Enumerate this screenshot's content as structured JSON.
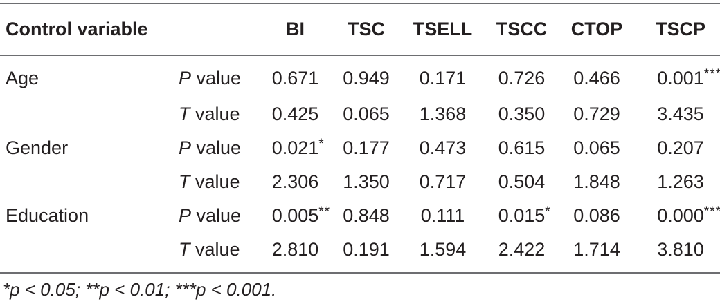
{
  "header": {
    "control_variable": "Control variable",
    "blank": "",
    "columns": [
      "BI",
      "TSC",
      "TSELL",
      "TSCC",
      "CTOP",
      "TSCP"
    ]
  },
  "rows": [
    {
      "variable": "Age",
      "p": {
        "letter": "P",
        "word": " value",
        "values": [
          "0.671",
          "0.949",
          "0.171",
          "0.726",
          "0.466",
          "0.001"
        ],
        "stars": [
          "",
          "",
          "",
          "",
          "",
          "***"
        ]
      },
      "t": {
        "letter": "T",
        "word": " value",
        "values": [
          "0.425",
          "0.065",
          "1.368",
          "0.350",
          "0.729",
          "3.435"
        ]
      }
    },
    {
      "variable": "Gender",
      "p": {
        "letter": "P",
        "word": " value",
        "values": [
          "0.021",
          "0.177",
          "0.473",
          "0.615",
          "0.065",
          "0.207"
        ],
        "stars": [
          "*",
          "",
          "",
          "",
          "",
          ""
        ]
      },
      "t": {
        "letter": "T",
        "word": " value",
        "values": [
          "2.306",
          "1.350",
          "0.717",
          "0.504",
          "1.848",
          "1.263"
        ]
      }
    },
    {
      "variable": "Education",
      "p": {
        "letter": "P",
        "word": " value",
        "values": [
          "0.005",
          "0.848",
          "0.111",
          "0.015",
          "0.086",
          "0.000"
        ],
        "stars": [
          "**",
          "",
          "",
          "*",
          "",
          "***"
        ]
      },
      "t": {
        "letter": "T",
        "word": " value",
        "values": [
          "2.810",
          "0.191",
          "1.594",
          "2.422",
          "1.714",
          "3.810"
        ]
      }
    }
  ],
  "footnote": "*p < 0.05; **p < 0.01; ***p < 0.001."
}
